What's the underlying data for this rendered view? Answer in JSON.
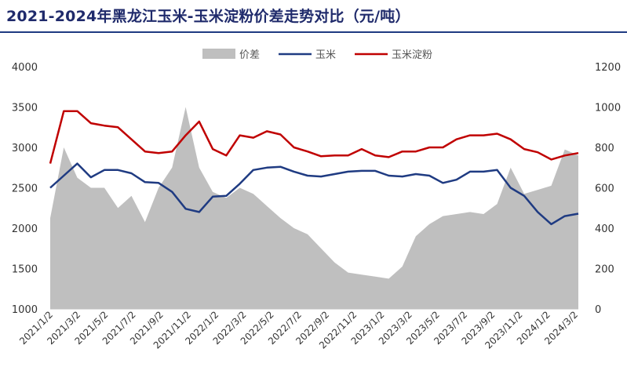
{
  "chart_data": {
    "type": "line",
    "title": "2021-2024年黑龙江玉米-玉米淀粉价差走势对比（元/吨）",
    "legend_placement": "top-center",
    "grid": false,
    "x": [
      "2021/1/2",
      "2021/2/1",
      "2021/3/1",
      "2021/3/31",
      "2021/4/30",
      "2021/5/30",
      "2021/6/29",
      "2021/7/29",
      "2021/8/28",
      "2021/9/27",
      "2021/10/27",
      "2021/11/26",
      "2021/12/26",
      "2022/1/25",
      "2022/2/24",
      "2022/3/26",
      "2022/4/25",
      "2022/5/25",
      "2022/6/24",
      "2022/7/24",
      "2022/8/23",
      "2022/9/22",
      "2022/10/22",
      "2022/11/21",
      "2022/12/21",
      "2023/1/20",
      "2023/2/19",
      "2023/3/21",
      "2023/4/20",
      "2023/5/20",
      "2023/6/19",
      "2023/7/19",
      "2023/8/18",
      "2023/9/17",
      "2023/10/17",
      "2023/11/16",
      "2023/12/16",
      "2024/1/15",
      "2024/2/14",
      "2024/3/15"
    ],
    "x_tick_labels": [
      "2021/1/2",
      "2021/3/2",
      "2021/5/2",
      "2021/7/2",
      "2021/9/2",
      "2021/11/2",
      "2022/1/2",
      "2022/3/2",
      "2022/5/2",
      "2022/7/2",
      "2022/9/2",
      "2022/11/2",
      "2023/1/2",
      "2023/3/2",
      "2023/5/2",
      "2023/7/2",
      "2023/9/2",
      "2023/11/2",
      "2024/1/2",
      "2024/3/2"
    ],
    "series": [
      {
        "name": "价差",
        "type": "area",
        "axis": "right",
        "color": "#bfbfbf",
        "values": [
          450,
          800,
          650,
          600,
          600,
          500,
          560,
          430,
          600,
          700,
          1000,
          700,
          580,
          550,
          600,
          570,
          510,
          450,
          400,
          370,
          300,
          230,
          180,
          170,
          160,
          150,
          210,
          360,
          420,
          460,
          470,
          480,
          470,
          520,
          700,
          570,
          590,
          610,
          790,
          760
        ]
      },
      {
        "name": "玉米",
        "type": "line",
        "axis": "left",
        "color": "#1f3b82",
        "values": [
          2500,
          2650,
          2800,
          2630,
          2720,
          2720,
          2680,
          2570,
          2560,
          2450,
          2240,
          2200,
          2390,
          2400,
          2550,
          2720,
          2750,
          2760,
          2700,
          2650,
          2640,
          2670,
          2700,
          2710,
          2710,
          2650,
          2640,
          2670,
          2650,
          2560,
          2600,
          2700,
          2700,
          2720,
          2500,
          2400,
          2200,
          2050,
          2150,
          2180
        ]
      },
      {
        "name": "玉米淀粉",
        "type": "line",
        "axis": "left",
        "color": "#c00000",
        "values": [
          2800,
          3450,
          3450,
          3300,
          3270,
          3250,
          3100,
          2950,
          2930,
          2950,
          3150,
          3320,
          2980,
          2900,
          3150,
          3120,
          3200,
          3160,
          3000,
          2950,
          2890,
          2900,
          2900,
          2980,
          2900,
          2880,
          2950,
          2950,
          3000,
          3000,
          3100,
          3150,
          3150,
          3170,
          3100,
          2980,
          2940,
          2850,
          2900,
          2930
        ]
      }
    ],
    "y_left": {
      "min": 1000,
      "max": 4000,
      "ticks": [
        "1000",
        "1500",
        "2000",
        "2500",
        "3000",
        "3500",
        "4000"
      ]
    },
    "y_right": {
      "min": 0,
      "max": 1200,
      "ticks": [
        "0",
        "200",
        "400",
        "600",
        "800",
        "1000",
        "1200"
      ]
    }
  }
}
